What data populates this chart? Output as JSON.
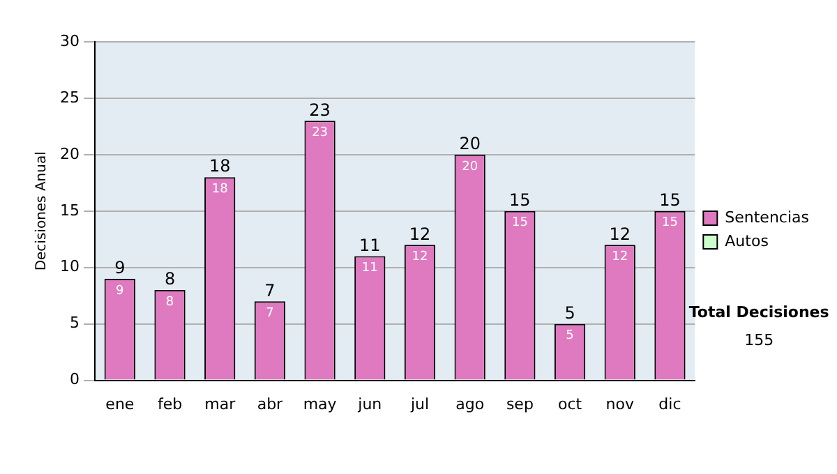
{
  "chart_data": {
    "type": "bar",
    "categories": [
      "ene",
      "feb",
      "mar",
      "abr",
      "may",
      "jun",
      "jul",
      "ago",
      "sep",
      "oct",
      "nov",
      "dic"
    ],
    "series": [
      {
        "name": "Sentencias",
        "color": "#e07ac0",
        "values": [
          9,
          8,
          18,
          7,
          23,
          11,
          12,
          20,
          15,
          5,
          12,
          15
        ],
        "value_labels": [
          "9",
          "8",
          "18",
          "7",
          "23",
          "11",
          "12",
          "20",
          "15",
          "5",
          "12",
          "15"
        ]
      },
      {
        "name": "Autos",
        "color": "#ccffcc",
        "values": [
          0,
          0,
          0,
          0,
          0,
          0,
          0,
          0,
          0,
          0,
          0,
          0
        ]
      }
    ],
    "stacked": true,
    "totals": [
      "9",
      "8",
      "18",
      "7",
      "23",
      "11",
      "12",
      "20",
      "15",
      "5",
      "12",
      "15"
    ],
    "ylabel": "Decisiones Anual",
    "ylim": [
      0,
      30
    ],
    "yticks": [
      0,
      5,
      10,
      15,
      20,
      25,
      30
    ],
    "grid": "y",
    "legend": "right",
    "annotations": [
      "Total Decisiones",
      "155"
    ]
  }
}
